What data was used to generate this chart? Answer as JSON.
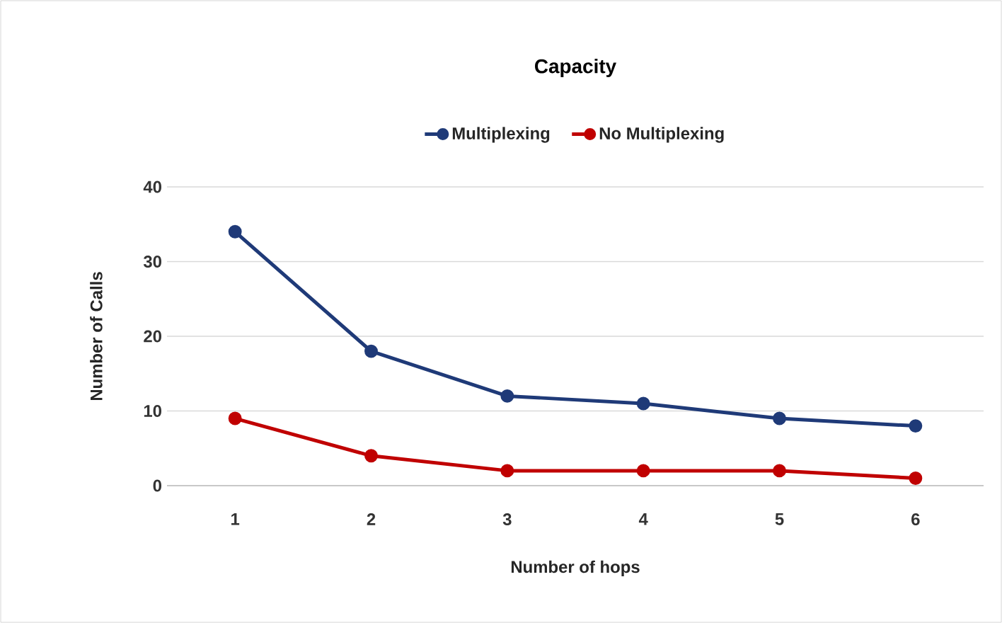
{
  "chart_data": {
    "type": "line",
    "title": "Capacity",
    "xlabel": "Number of hops",
    "ylabel": "Number of Calls",
    "categories": [
      "1",
      "2",
      "3",
      "4",
      "5",
      "6"
    ],
    "series": [
      {
        "name": "Multiplexing",
        "color": "#1f3a78",
        "values": [
          34,
          18,
          12,
          11,
          9,
          8
        ]
      },
      {
        "name": "No Multiplexing",
        "color": "#c00000",
        "values": [
          9,
          4,
          2,
          2,
          2,
          1
        ]
      }
    ],
    "ylim": [
      0,
      40
    ],
    "yticks": [
      0,
      10,
      20,
      30,
      40
    ],
    "grid": "y",
    "legend": "top",
    "marker": "circle",
    "line_style": "solid"
  }
}
